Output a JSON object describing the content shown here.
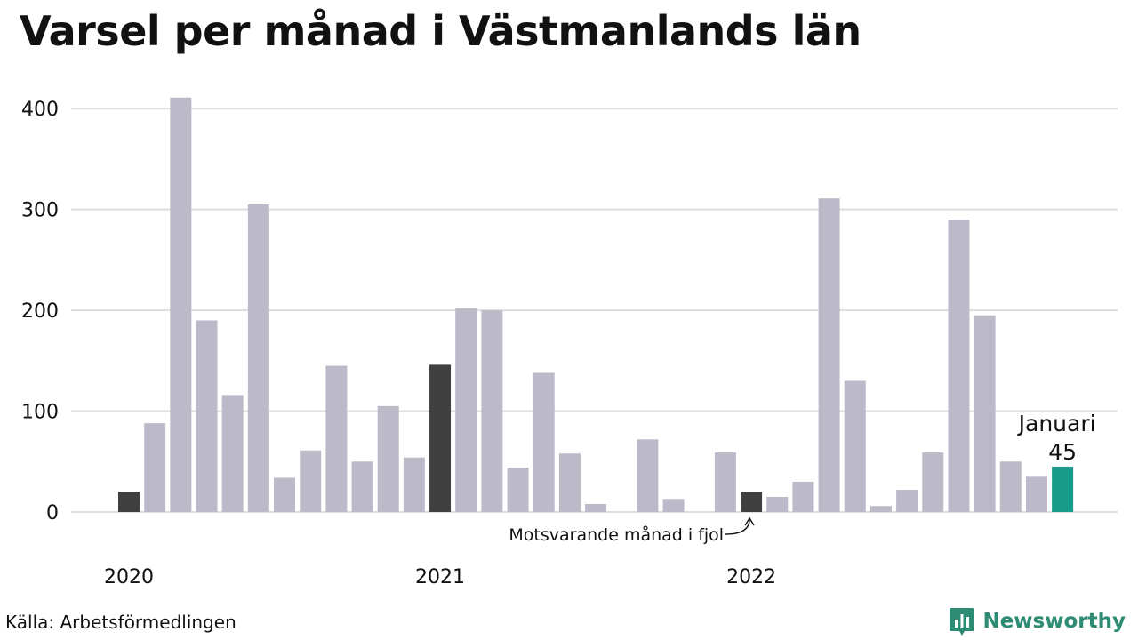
{
  "title": "Varsel per månad i Västmanlands län",
  "source": "Källa: Arbetsförmedlingen",
  "brand": {
    "name": "Newsworthy",
    "icon": "bar-chart-logo-icon"
  },
  "colors": {
    "default": "#bcbac9",
    "highlight": "#404040",
    "current": "#1a9a8a",
    "grid": "#dddddd",
    "brand": "#2e8b74"
  },
  "chart_data": {
    "type": "bar",
    "title": "Varsel per månad i Västmanlands län",
    "xlabel": "",
    "ylabel": "",
    "ylim": [
      0,
      420
    ],
    "yticks": [
      0,
      100,
      200,
      300,
      400
    ],
    "year_labels": [
      "2020",
      "2021",
      "2022"
    ],
    "grid": true,
    "series": [
      {
        "values": [
          20,
          88,
          411,
          190,
          116,
          305,
          34,
          61,
          145,
          50,
          105,
          54,
          146,
          202,
          200,
          44,
          138,
          58,
          8,
          0,
          72,
          13,
          0,
          59,
          20,
          15,
          30,
          311,
          130,
          6,
          22,
          59,
          290,
          195,
          50,
          35,
          45
        ],
        "highlight_indices": [
          0,
          12,
          24
        ],
        "current_index": 36
      }
    ],
    "annotations": {
      "current_label": "Januari",
      "current_value": "45",
      "last_year_label": "Motsvarande månad i fjol"
    }
  }
}
